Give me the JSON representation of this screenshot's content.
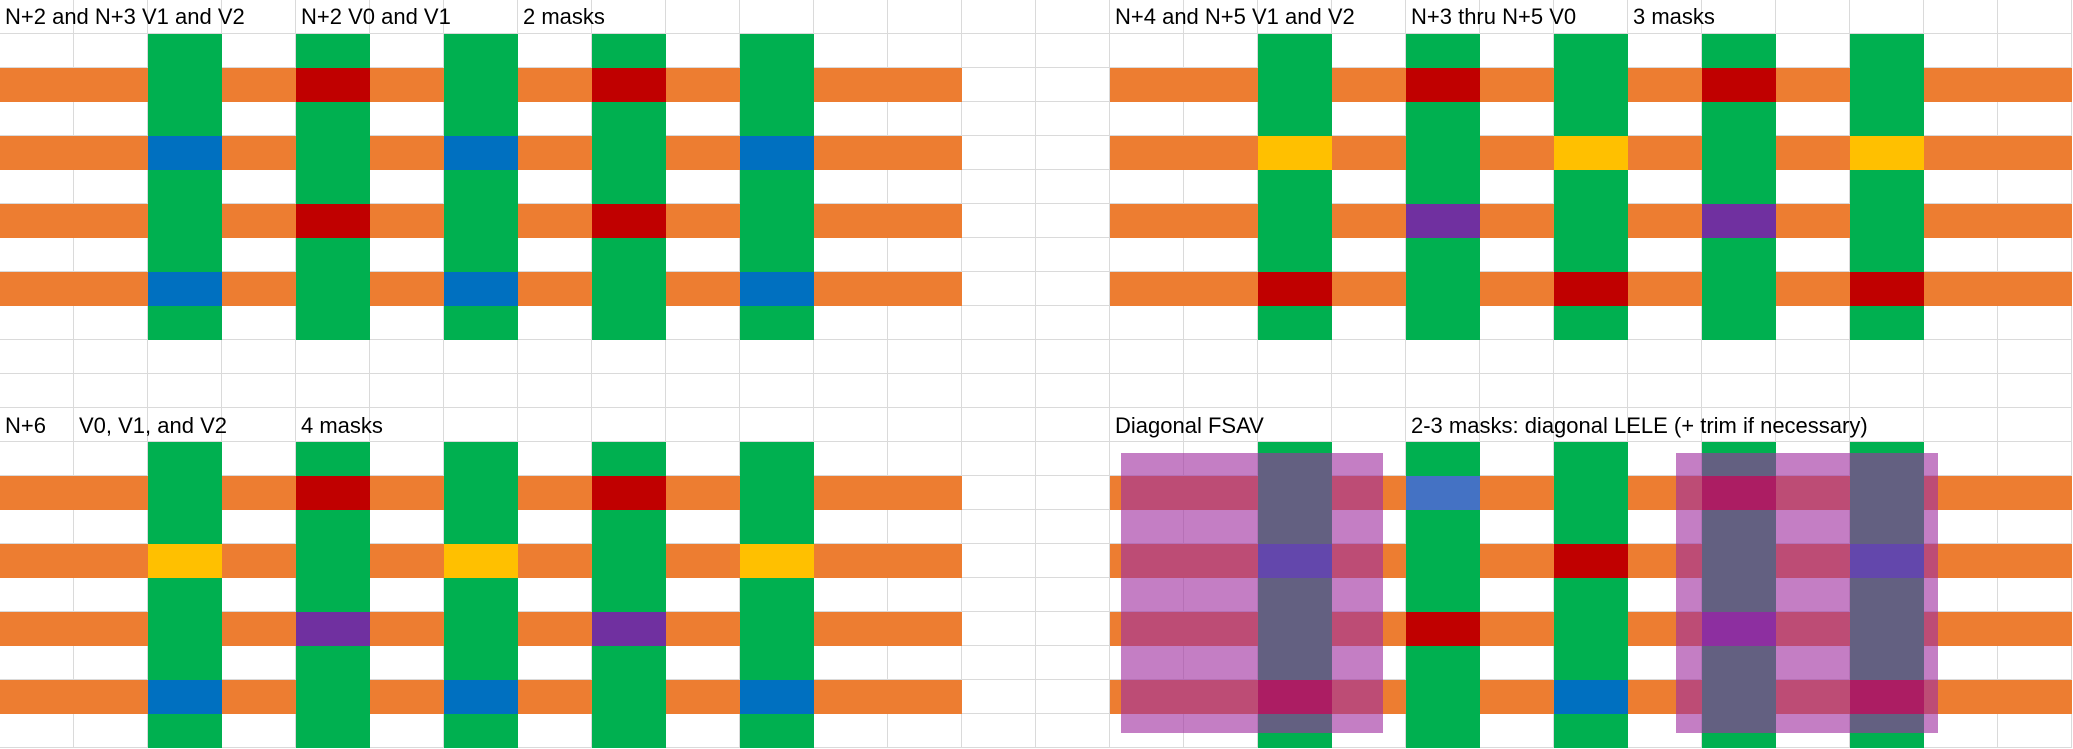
{
  "colors": {
    "wire": "#ED7D31",
    "via_column": "#00B050",
    "red": "#C00000",
    "blue": "#0070C0",
    "yellow": "#FFC000",
    "purple": "#7030A0",
    "light_blue": "#4472C4",
    "mask_overlay": "#A02EA0"
  },
  "panels": {
    "top_left": {
      "labels": [
        "N+2 and N+3 V1 and V2",
        "N+2 V0 and V1",
        "2 masks"
      ],
      "via_colors": {
        "row1": [
          "green",
          "red",
          "green",
          "red",
          "green"
        ],
        "row2": [
          "blue",
          "green",
          "blue",
          "green",
          "blue"
        ],
        "row3": [
          "green",
          "red",
          "green",
          "red",
          "green"
        ],
        "row4": [
          "blue",
          "green",
          "blue",
          "green",
          "blue"
        ]
      }
    },
    "top_right": {
      "labels": [
        "N+4 and N+5 V1 and V2",
        "N+3 thru N+5 V0",
        "3 masks"
      ],
      "via_colors": {
        "row1": [
          "green",
          "red",
          "green",
          "red",
          "green"
        ],
        "row2": [
          "yellow",
          "green",
          "yellow",
          "green",
          "yellow"
        ],
        "row3": [
          "green",
          "purple",
          "green",
          "purple",
          "green"
        ],
        "row4": [
          "red",
          "green",
          "red",
          "green",
          "red"
        ]
      }
    },
    "bottom_left": {
      "labels": [
        "N+6",
        "V0, V1, and V2",
        "4 masks"
      ],
      "via_colors": {
        "row1": [
          "green",
          "red",
          "green",
          "red",
          "green"
        ],
        "row2": [
          "yellow",
          "green",
          "yellow",
          "green",
          "yellow"
        ],
        "row3": [
          "green",
          "purple",
          "green",
          "purple",
          "green"
        ],
        "row4": [
          "blue",
          "green",
          "blue",
          "green",
          "blue"
        ]
      }
    },
    "bottom_right": {
      "labels": [
        "Diagonal FSAV",
        "2-3 masks: diagonal LELE (+ trim if necessary)"
      ],
      "via_colors": {
        "row1": [
          "green",
          "light_blue",
          "green",
          "red",
          "green"
        ],
        "row2": [
          "blue",
          "green",
          "red",
          "green",
          "blue"
        ],
        "row3": [
          "green",
          "red",
          "green",
          "purple",
          "green"
        ],
        "row4": [
          "red",
          "green",
          "blue",
          "green",
          "red"
        ]
      },
      "mask_overlays": 2
    }
  }
}
